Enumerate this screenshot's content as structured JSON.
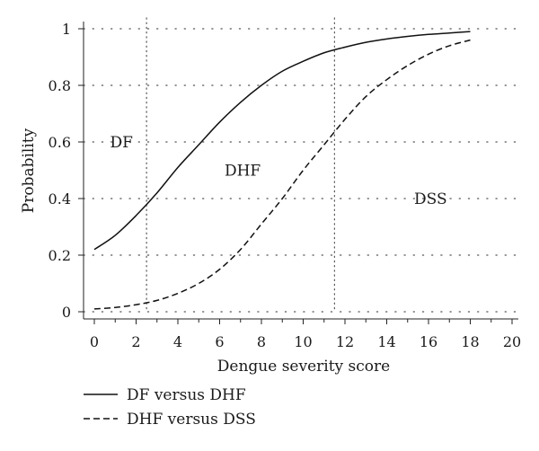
{
  "chart_data": {
    "type": "line",
    "xlabel": "Dengue severity score",
    "ylabel": "Probability",
    "xlim": [
      0,
      20
    ],
    "ylim": [
      0,
      1
    ],
    "x_ticks": [
      "0",
      "2",
      "4",
      "6",
      "8",
      "10",
      "12",
      "14",
      "16",
      "18",
      "20"
    ],
    "y_ticks": [
      "0",
      "0.2",
      "0.4",
      "0.6",
      "0.8",
      "1"
    ],
    "grid": "dotted horizontal",
    "legend_placement": "bottom-left",
    "thresholds": [
      2.5,
      11.5
    ],
    "regions": [
      {
        "label": "DF",
        "x": 1.3,
        "y": 0.6
      },
      {
        "label": "DHF",
        "x": 7.1,
        "y": 0.5
      },
      {
        "label": "DSS",
        "x": 16.1,
        "y": 0.4
      }
    ],
    "series": [
      {
        "name": "DF versus DHF",
        "style": "solid",
        "x": [
          0,
          1,
          2,
          3,
          4,
          5,
          6,
          7,
          8,
          9,
          10,
          11,
          12,
          13,
          14,
          15,
          16,
          17,
          18
        ],
        "y": [
          0.22,
          0.27,
          0.34,
          0.42,
          0.51,
          0.59,
          0.67,
          0.74,
          0.8,
          0.85,
          0.885,
          0.915,
          0.935,
          0.952,
          0.964,
          0.973,
          0.98,
          0.985,
          0.99
        ]
      },
      {
        "name": "DHF versus DSS",
        "style": "dashed",
        "x": [
          0,
          1,
          2,
          3,
          4,
          5,
          6,
          7,
          8,
          9,
          10,
          11,
          12,
          13,
          14,
          15,
          16,
          17,
          18
        ],
        "y": [
          0.01,
          0.015,
          0.025,
          0.04,
          0.065,
          0.1,
          0.15,
          0.22,
          0.31,
          0.4,
          0.5,
          0.59,
          0.68,
          0.76,
          0.82,
          0.87,
          0.91,
          0.94,
          0.96
        ]
      }
    ]
  }
}
